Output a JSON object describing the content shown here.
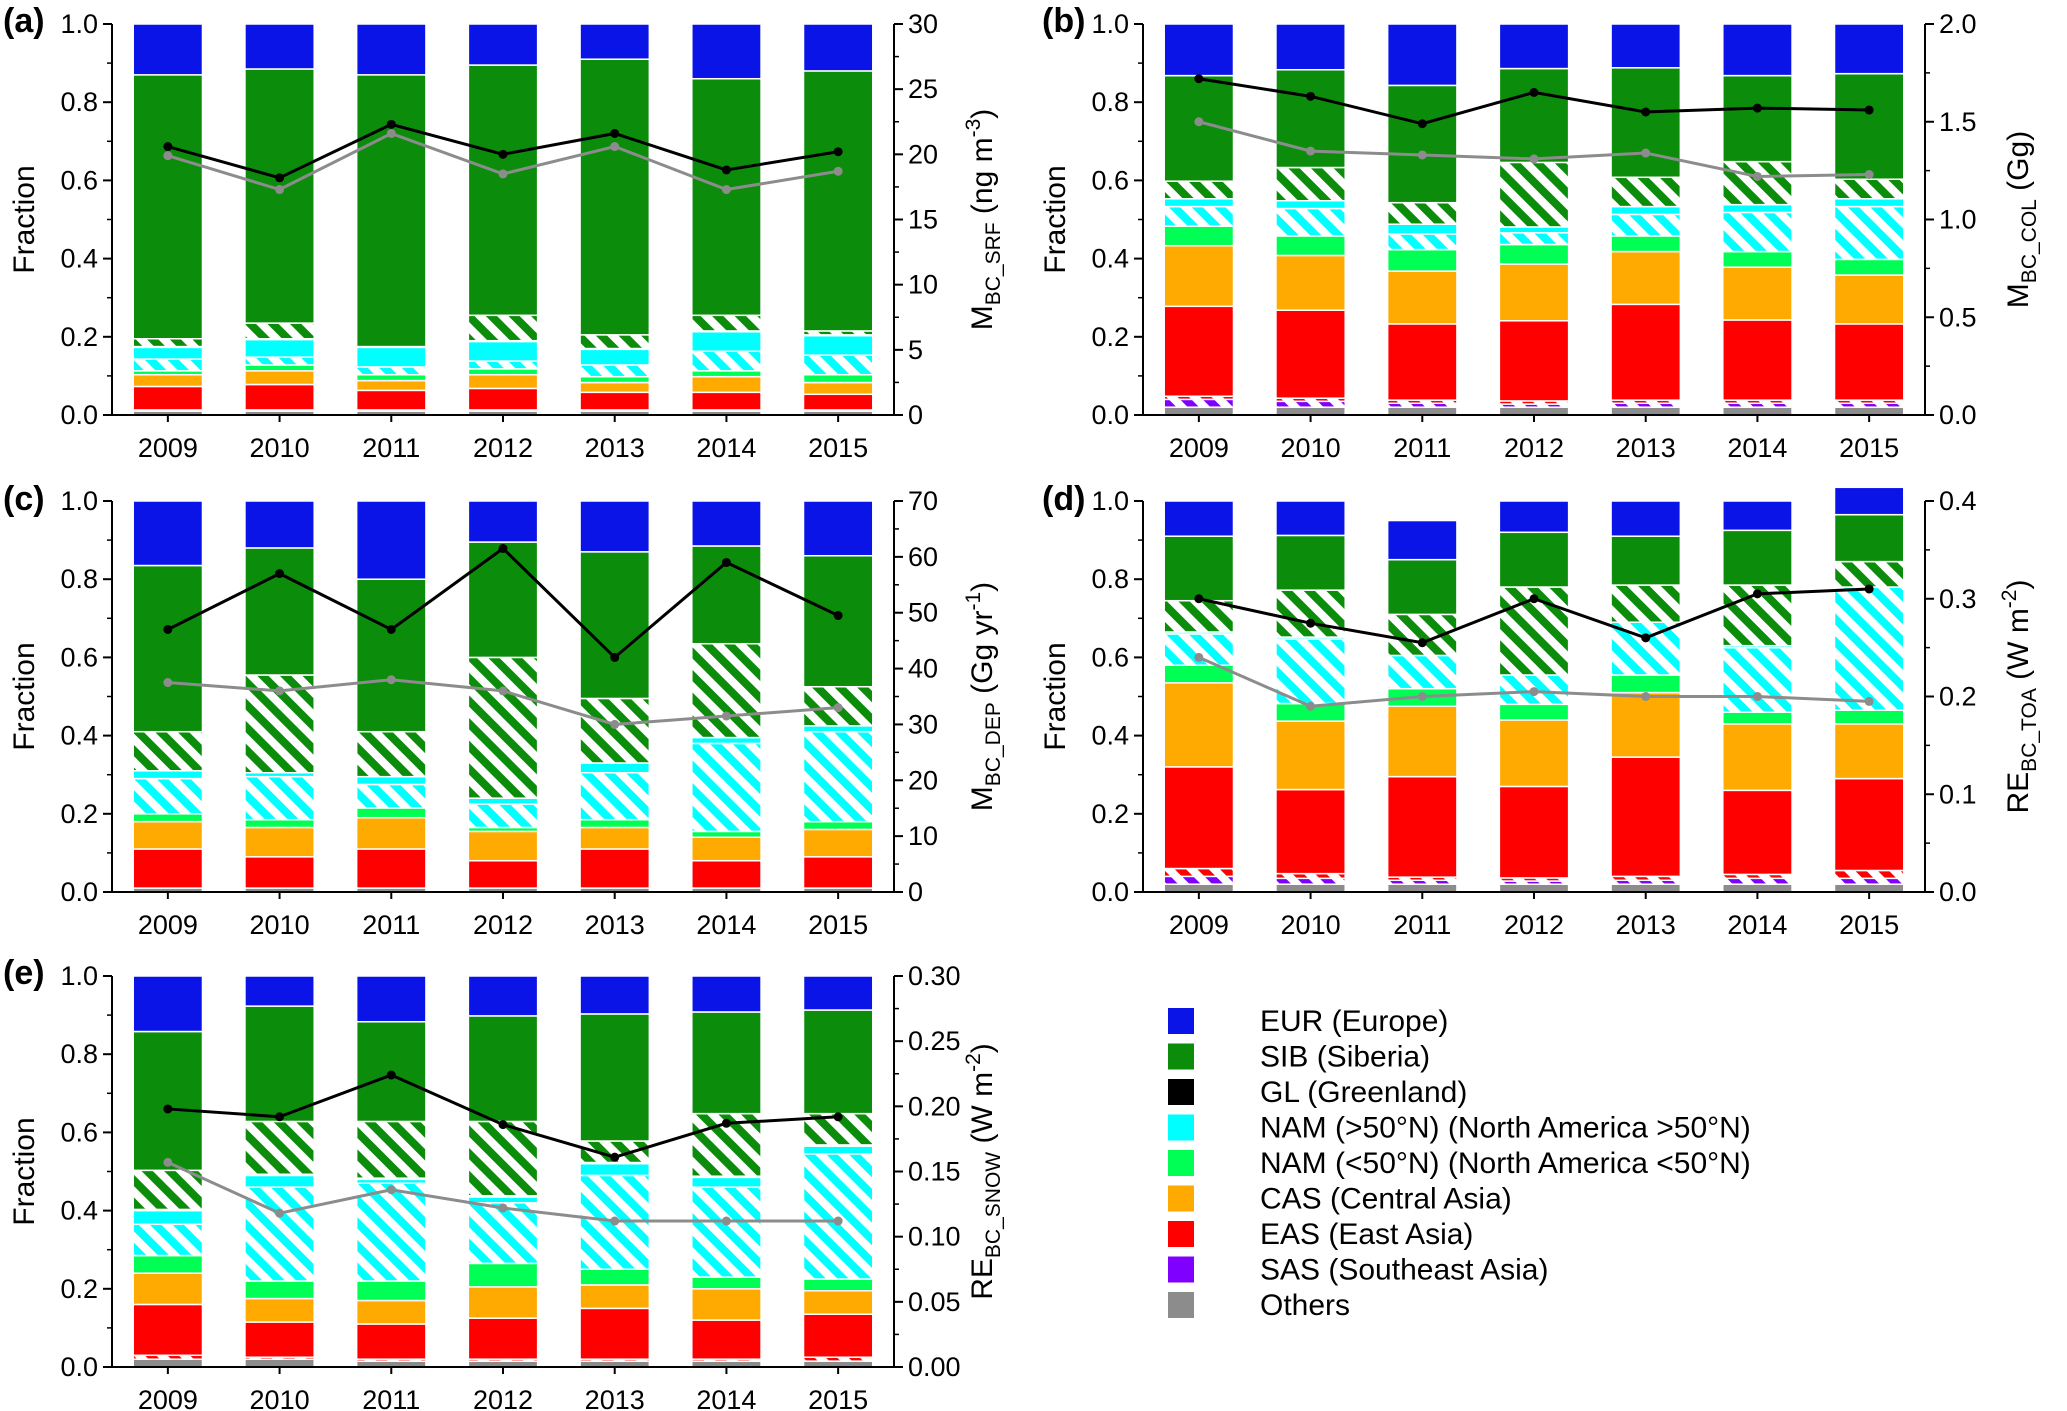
{
  "years": [
    "2009",
    "2010",
    "2011",
    "2012",
    "2013",
    "2014",
    "2015"
  ],
  "colors": {
    "EUR": "#0a14e6",
    "SIB": "#0b8c0b",
    "GL": "#000000",
    "NAM_N": "#00ffff",
    "NAM_S": "#00ff55",
    "CAS": "#ffaa00",
    "EAS": "#ff0000",
    "SAS": "#8000ff",
    "Others": "#8c8c8c",
    "line_total": "#000000",
    "line_secondary": "#8c8c8c"
  },
  "legend": [
    {
      "key": "EUR",
      "label": "EUR (Europe)"
    },
    {
      "key": "SIB",
      "label": "SIB (Siberia)"
    },
    {
      "key": "GL",
      "label": "GL (Greenland)"
    },
    {
      "key": "NAM_N",
      "label": "NAM (>50°N) (North America >50°N)"
    },
    {
      "key": "NAM_S",
      "label": "NAM (<50°N) (North America <50°N)"
    },
    {
      "key": "CAS",
      "label": "CAS (Central Asia)"
    },
    {
      "key": "EAS",
      "label": "EAS (East Asia)"
    },
    {
      "key": "SAS",
      "label": "SAS (Southeast Asia)"
    },
    {
      "key": "Others",
      "label": "Others"
    }
  ],
  "chart_data": [
    {
      "type": "bar",
      "panel": "(a)",
      "stacked": true,
      "categories": [
        "2009",
        "2010",
        "2011",
        "2012",
        "2013",
        "2014",
        "2015"
      ],
      "ylabel": "Fraction",
      "ylim": [
        0,
        1
      ],
      "yticks": [
        "0.0",
        "0.2",
        "0.4",
        "0.6",
        "0.8",
        "1.0"
      ],
      "y2label_main": "M",
      "y2label_sub": "BC_SRF",
      "y2label_unit": "(ng m",
      "y2label_sup": "-3",
      "y2label_close": ")",
      "y2lim": [
        0,
        30
      ],
      "y2ticks": [
        "0",
        "5",
        "10",
        "15",
        "20",
        "25",
        "30"
      ],
      "segments": [
        {
          "region": "Others",
          "hatched": false,
          "values": [
            0.01,
            0.01,
            0.01,
            0.01,
            0.01,
            0.01,
            0.01
          ]
        },
        {
          "region": "SAS",
          "hatched": false,
          "values": [
            0.003,
            0.003,
            0.003,
            0.003,
            0.003,
            0.003,
            0.003
          ]
        },
        {
          "region": "EAS",
          "hatched": false,
          "values": [
            0.06,
            0.065,
            0.05,
            0.055,
            0.045,
            0.045,
            0.04
          ]
        },
        {
          "region": "CAS",
          "hatched": false,
          "values": [
            0.03,
            0.035,
            0.025,
            0.035,
            0.025,
            0.04,
            0.03
          ]
        },
        {
          "region": "NAM_S",
          "hatched": false,
          "values": [
            0.01,
            0.015,
            0.015,
            0.015,
            0.015,
            0.015,
            0.02
          ]
        },
        {
          "region": "NAM_N",
          "hatched": true,
          "values": [
            0.03,
            0.02,
            0.02,
            0.02,
            0.03,
            0.05,
            0.05
          ]
        },
        {
          "region": "NAM_N",
          "hatched": false,
          "values": [
            0.03,
            0.045,
            0.05,
            0.05,
            0.04,
            0.05,
            0.05
          ]
        },
        {
          "region": "GL",
          "hatched": false,
          "values": [
            0.002,
            0.002,
            0.002,
            0.002,
            0.002,
            0.002,
            0.002
          ]
        },
        {
          "region": "SIB",
          "hatched": true,
          "values": [
            0.02,
            0.04,
            0.0,
            0.065,
            0.035,
            0.04,
            0.01
          ]
        },
        {
          "region": "SIB",
          "hatched": false,
          "values": [
            0.675,
            0.65,
            0.695,
            0.64,
            0.705,
            0.605,
            0.665
          ]
        },
        {
          "region": "EUR",
          "hatched": false,
          "values": [
            0.13,
            0.115,
            0.13,
            0.105,
            0.09,
            0.14,
            0.12
          ]
        }
      ],
      "series": [
        {
          "values": [
            20.6,
            18.2,
            22.3,
            20.0,
            21.6,
            18.8,
            20.2
          ]
        },
        {
          "values": [
            19.9,
            17.3,
            21.6,
            18.5,
            20.6,
            17.3,
            18.7
          ]
        }
      ]
    },
    {
      "type": "bar",
      "panel": "(b)",
      "stacked": true,
      "categories": [
        "2009",
        "2010",
        "2011",
        "2012",
        "2013",
        "2014",
        "2015"
      ],
      "ylabel": "Fraction",
      "ylim": [
        0,
        1
      ],
      "yticks": [
        "0.0",
        "0.2",
        "0.4",
        "0.6",
        "0.8",
        "1.0"
      ],
      "y2label_main": "M",
      "y2label_sub": "BC_COL",
      "y2label_unit": "(Gg)",
      "y2label_sup": "",
      "y2label_close": "",
      "y2lim": [
        0,
        2
      ],
      "y2ticks": [
        "0.0",
        "0.5",
        "1.0",
        "1.5",
        "2.0"
      ],
      "segments": [
        {
          "region": "Others",
          "hatched": false,
          "values": [
            0.02,
            0.02,
            0.02,
            0.02,
            0.02,
            0.02,
            0.02
          ]
        },
        {
          "region": "SAS",
          "hatched": true,
          "values": [
            0.02,
            0.015,
            0.01,
            0.008,
            0.01,
            0.01,
            0.01
          ]
        },
        {
          "region": "EAS",
          "hatched": true,
          "values": [
            0.008,
            0.008,
            0.008,
            0.008,
            0.008,
            0.008,
            0.008
          ]
        },
        {
          "region": "EAS",
          "hatched": false,
          "values": [
            0.23,
            0.225,
            0.195,
            0.205,
            0.245,
            0.205,
            0.195
          ]
        },
        {
          "region": "CAS",
          "hatched": false,
          "values": [
            0.155,
            0.14,
            0.135,
            0.145,
            0.135,
            0.135,
            0.125
          ]
        },
        {
          "region": "NAM_S",
          "hatched": false,
          "values": [
            0.05,
            0.05,
            0.055,
            0.05,
            0.04,
            0.04,
            0.04
          ]
        },
        {
          "region": "NAM_N",
          "hatched": true,
          "values": [
            0.05,
            0.07,
            0.04,
            0.03,
            0.055,
            0.1,
            0.135
          ]
        },
        {
          "region": "NAM_N",
          "hatched": false,
          "values": [
            0.02,
            0.02,
            0.025,
            0.015,
            0.02,
            0.02,
            0.02
          ]
        },
        {
          "region": "SIB",
          "hatched": true,
          "values": [
            0.045,
            0.085,
            0.055,
            0.165,
            0.075,
            0.11,
            0.05
          ]
        },
        {
          "region": "SIB",
          "hatched": false,
          "values": [
            0.27,
            0.25,
            0.3,
            0.24,
            0.28,
            0.22,
            0.27
          ]
        },
        {
          "region": "EUR",
          "hatched": false,
          "values": [
            0.132,
            0.117,
            0.157,
            0.114,
            0.112,
            0.132,
            0.127
          ]
        }
      ],
      "series": [
        {
          "values": [
            1.72,
            1.63,
            1.49,
            1.65,
            1.55,
            1.57,
            1.56
          ]
        },
        {
          "values": [
            1.5,
            1.35,
            1.33,
            1.31,
            1.34,
            1.22,
            1.23
          ]
        }
      ]
    },
    {
      "type": "bar",
      "panel": "(c)",
      "stacked": true,
      "categories": [
        "2009",
        "2010",
        "2011",
        "2012",
        "2013",
        "2014",
        "2015"
      ],
      "ylabel": "Fraction",
      "ylim": [
        0,
        1
      ],
      "yticks": [
        "0.0",
        "0.2",
        "0.4",
        "0.6",
        "0.8",
        "1.0"
      ],
      "y2label_main": "M",
      "y2label_sub": "BC_DEP",
      "y2label_unit": "(Gg yr",
      "y2label_sup": "-1",
      "y2label_close": ")",
      "y2lim": [
        0,
        70
      ],
      "y2ticks": [
        "0",
        "10",
        "20",
        "30",
        "40",
        "50",
        "60",
        "70"
      ],
      "segments": [
        {
          "region": "Others",
          "hatched": false,
          "values": [
            0.01,
            0.01,
            0.01,
            0.01,
            0.01,
            0.01,
            0.01
          ]
        },
        {
          "region": "EAS",
          "hatched": false,
          "values": [
            0.1,
            0.08,
            0.1,
            0.07,
            0.1,
            0.07,
            0.08
          ]
        },
        {
          "region": "CAS",
          "hatched": false,
          "values": [
            0.07,
            0.075,
            0.08,
            0.075,
            0.055,
            0.06,
            0.07
          ]
        },
        {
          "region": "NAM_S",
          "hatched": false,
          "values": [
            0.02,
            0.02,
            0.025,
            0.01,
            0.02,
            0.015,
            0.02
          ]
        },
        {
          "region": "NAM_N",
          "hatched": true,
          "values": [
            0.09,
            0.11,
            0.06,
            0.06,
            0.12,
            0.225,
            0.23
          ]
        },
        {
          "region": "NAM_N",
          "hatched": false,
          "values": [
            0.02,
            0.01,
            0.02,
            0.015,
            0.025,
            0.015,
            0.015
          ]
        },
        {
          "region": "SIB",
          "hatched": true,
          "values": [
            0.1,
            0.25,
            0.115,
            0.36,
            0.165,
            0.24,
            0.1
          ]
        },
        {
          "region": "SIB",
          "hatched": false,
          "values": [
            0.425,
            0.325,
            0.39,
            0.295,
            0.375,
            0.25,
            0.335
          ]
        },
        {
          "region": "EUR",
          "hatched": false,
          "values": [
            0.165,
            0.12,
            0.2,
            0.105,
            0.13,
            0.115,
            0.14
          ]
        }
      ],
      "series": [
        {
          "values": [
            47.0,
            57.0,
            47.0,
            61.5,
            42.0,
            59.0,
            49.5
          ]
        },
        {
          "values": [
            37.5,
            36.0,
            38.0,
            36.0,
            30.0,
            31.5,
            33.0
          ]
        }
      ]
    },
    {
      "type": "bar",
      "panel": "(d)",
      "stacked": true,
      "categories": [
        "2009",
        "2010",
        "2011",
        "2012",
        "2013",
        "2014",
        "2015"
      ],
      "ylabel": "Fraction",
      "ylim": [
        0,
        1
      ],
      "yticks": [
        "0.0",
        "0.2",
        "0.4",
        "0.6",
        "0.8",
        "1.0"
      ],
      "y2label_main": "RE",
      "y2label_sub": "BC_TOA",
      "y2label_unit": "(W m",
      "y2label_sup": "-2",
      "y2label_close": ")",
      "y2lim": [
        0,
        0.4
      ],
      "y2ticks": [
        "0.0",
        "0.1",
        "0.2",
        "0.3",
        "0.4"
      ],
      "segments": [
        {
          "region": "Others",
          "hatched": false,
          "values": [
            0.02,
            0.02,
            0.02,
            0.02,
            0.02,
            0.02,
            0.02
          ]
        },
        {
          "region": "SAS",
          "hatched": true,
          "values": [
            0.02,
            0.015,
            0.01,
            0.008,
            0.01,
            0.015,
            0.015
          ]
        },
        {
          "region": "EAS",
          "hatched": true,
          "values": [
            0.02,
            0.012,
            0.008,
            0.008,
            0.01,
            0.01,
            0.02
          ]
        },
        {
          "region": "EAS",
          "hatched": false,
          "values": [
            0.26,
            0.215,
            0.257,
            0.234,
            0.305,
            0.215,
            0.235
          ]
        },
        {
          "region": "CAS",
          "hatched": false,
          "values": [
            0.215,
            0.175,
            0.18,
            0.17,
            0.165,
            0.17,
            0.14
          ]
        },
        {
          "region": "NAM_S",
          "hatched": false,
          "values": [
            0.045,
            0.045,
            0.045,
            0.04,
            0.045,
            0.03,
            0.035
          ]
        },
        {
          "region": "NAM_N",
          "hatched": true,
          "values": [
            0.08,
            0.165,
            0.085,
            0.075,
            0.135,
            0.165,
            0.315
          ]
        },
        {
          "region": "NAM_N",
          "hatched": false,
          "values": [
            0.005,
            0.005,
            0.0,
            0.0,
            0.0,
            0.005,
            0.0
          ]
        },
        {
          "region": "SIB",
          "hatched": true,
          "values": [
            0.08,
            0.12,
            0.105,
            0.225,
            0.095,
            0.155,
            0.065
          ]
        },
        {
          "region": "SIB",
          "hatched": false,
          "values": [
            0.165,
            0.14,
            0.14,
            0.14,
            0.125,
            0.14,
            0.12
          ]
        },
        {
          "region": "EUR",
          "hatched": false,
          "values": [
            0.09,
            0.088,
            0.1,
            0.08,
            0.09,
            0.075,
            0.07
          ]
        }
      ],
      "series": [
        {
          "values": [
            0.3,
            0.275,
            0.255,
            0.3,
            0.26,
            0.305,
            0.31
          ]
        },
        {
          "values": [
            0.24,
            0.19,
            0.2,
            0.205,
            0.2,
            0.2,
            0.195
          ]
        }
      ]
    },
    {
      "type": "bar",
      "panel": "(e)",
      "stacked": true,
      "categories": [
        "2009",
        "2010",
        "2011",
        "2012",
        "2013",
        "2014",
        "2015"
      ],
      "ylabel": "Fraction",
      "ylim": [
        0,
        1
      ],
      "yticks": [
        "0.0",
        "0.2",
        "0.4",
        "0.6",
        "0.8",
        "1.0"
      ],
      "y2label_main": "RE",
      "y2label_sub": "BC_SNOW",
      "y2label_unit": "(W m",
      "y2label_sup": "-2",
      "y2label_close": ")",
      "y2lim": [
        0,
        0.3
      ],
      "y2ticks": [
        "0.00",
        "0.05",
        "0.10",
        "0.15",
        "0.20",
        "0.25",
        "0.30"
      ],
      "segments": [
        {
          "region": "Others",
          "hatched": false,
          "values": [
            0.02,
            0.02,
            0.015,
            0.015,
            0.015,
            0.015,
            0.015
          ]
        },
        {
          "region": "EAS",
          "hatched": true,
          "values": [
            0.01,
            0.005,
            0.005,
            0.005,
            0.005,
            0.005,
            0.01
          ]
        },
        {
          "region": "EAS",
          "hatched": false,
          "values": [
            0.13,
            0.09,
            0.09,
            0.105,
            0.13,
            0.1,
            0.11
          ]
        },
        {
          "region": "CAS",
          "hatched": false,
          "values": [
            0.08,
            0.06,
            0.06,
            0.08,
            0.06,
            0.08,
            0.06
          ]
        },
        {
          "region": "NAM_S",
          "hatched": false,
          "values": [
            0.045,
            0.045,
            0.05,
            0.06,
            0.04,
            0.03,
            0.03
          ]
        },
        {
          "region": "NAM_N",
          "hatched": true,
          "values": [
            0.08,
            0.24,
            0.25,
            0.155,
            0.24,
            0.23,
            0.32
          ]
        },
        {
          "region": "NAM_N",
          "hatched": false,
          "values": [
            0.035,
            0.03,
            0.01,
            0.015,
            0.03,
            0.025,
            0.02
          ]
        },
        {
          "region": "GL",
          "hatched": false,
          "values": [
            0.003,
            0.003,
            0.003,
            0.003,
            0.003,
            0.003,
            0.003
          ]
        },
        {
          "region": "SIB",
          "hatched": true,
          "values": [
            0.1,
            0.135,
            0.145,
            0.19,
            0.055,
            0.16,
            0.08
          ]
        },
        {
          "region": "SIB",
          "hatched": false,
          "values": [
            0.355,
            0.295,
            0.255,
            0.27,
            0.325,
            0.26,
            0.265
          ]
        },
        {
          "region": "EUR",
          "hatched": false,
          "values": [
            0.142,
            0.077,
            0.117,
            0.102,
            0.097,
            0.092,
            0.087
          ]
        }
      ],
      "series": [
        {
          "values": [
            0.198,
            0.192,
            0.224,
            0.186,
            0.161,
            0.187,
            0.192
          ]
        },
        {
          "values": [
            0.157,
            0.118,
            0.136,
            0.122,
            0.112,
            0.112,
            0.112
          ]
        }
      ]
    }
  ]
}
